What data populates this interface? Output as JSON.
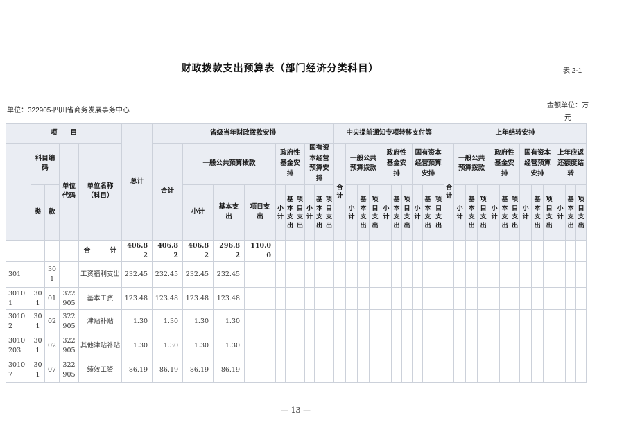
{
  "page": {
    "title": "财政拨款支出预算表（部门经济分类科目）",
    "table_tag": "表 2-1",
    "unit_line": "单位：322905-四川省商务发展事务中心",
    "amount_unit": "金额单位：万元",
    "page_number": "— 13 —"
  },
  "header": {
    "project": "项　　目",
    "subject_code": "科目编码",
    "cls": "类",
    "sec": "款",
    "unit_code": "单位代码",
    "unit_name": "单位名称（科目）",
    "grand_total": "总计",
    "sec1_title": "省级当年财政拨款安排",
    "sec2_title": "中央提前通知专项转移支付等",
    "sec3_title": "上年结转安排",
    "sum": "合计",
    "general": "一般公共预算拨款",
    "gov_fund": "政府性基金安排",
    "state_capital": "国有资本经营预算安排",
    "prev_return": "上年应返还额度结转",
    "subtotal": "小计",
    "basic": "基本支出",
    "project_exp": "项目支出"
  },
  "rows": [
    {
      "code": "",
      "cls": "",
      "sec": "",
      "ucode": "",
      "name": "合　　　计",
      "total": "406.82",
      "sum": "406.82",
      "sub": "406.82",
      "basic": "296.82",
      "proj": "110.00"
    },
    {
      "code": "301",
      "cls": "",
      "sec": "301",
      "ucode": "",
      "name": "工资福利支出",
      "total": "232.45",
      "sum": "232.45",
      "sub": "232.45",
      "basic": "232.45",
      "proj": ""
    },
    {
      "code": "30101",
      "cls": "301",
      "sec": "01",
      "ucode": "322905",
      "name": "基本工资",
      "total": "123.48",
      "sum": "123.48",
      "sub": "123.48",
      "basic": "123.48",
      "proj": ""
    },
    {
      "code": "30102",
      "cls": "301",
      "sec": "02",
      "ucode": "322905",
      "name": "津贴补贴",
      "total": "1.30",
      "sum": "1.30",
      "sub": "1.30",
      "basic": "1.30",
      "proj": ""
    },
    {
      "code": "3010203",
      "cls": "301",
      "sec": "02",
      "ucode": "322905",
      "name": "其他津贴补贴",
      "total": "1.30",
      "sum": "1.30",
      "sub": "1.30",
      "basic": "1.30",
      "proj": ""
    },
    {
      "code": "30107",
      "cls": "301",
      "sec": "07",
      "ucode": "322905",
      "name": "绩效工资",
      "total": "86.19",
      "sum": "86.19",
      "sub": "86.19",
      "basic": "86.19",
      "proj": ""
    }
  ]
}
